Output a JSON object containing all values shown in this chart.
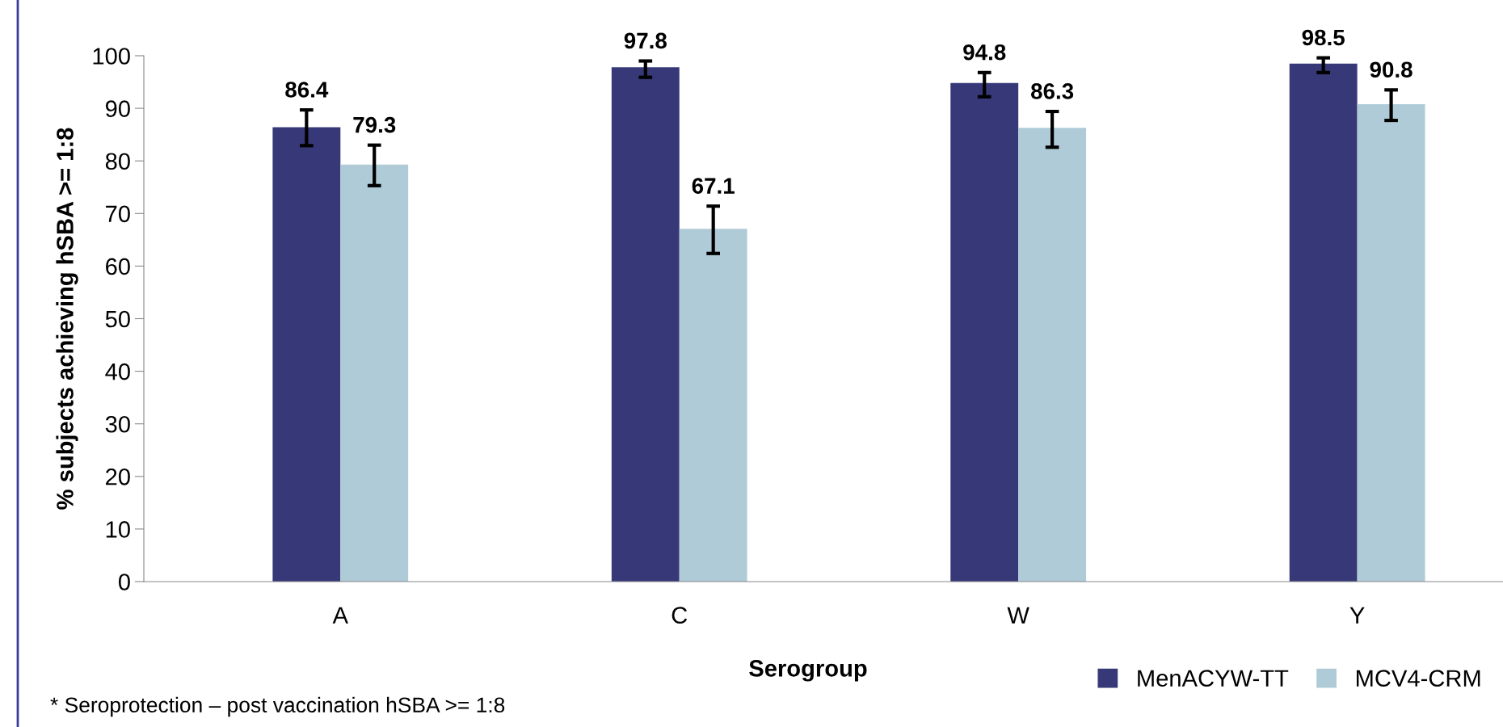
{
  "chart_data": {
    "type": "bar",
    "xlabel": "Serogroup",
    "ylabel": "% subjects achieving hSBA >= 1:8",
    "categories": [
      "A",
      "C",
      "W",
      "Y"
    ],
    "series": [
      {
        "name": "MenACYW-TT",
        "color": "#363877",
        "values": [
          86.4,
          97.8,
          94.8,
          98.5
        ],
        "errors": [
          [
            82.9,
            89.7
          ],
          [
            95.9,
            99.0
          ],
          [
            92.2,
            96.8
          ],
          [
            96.8,
            99.6
          ]
        ]
      },
      {
        "name": "MCV4-CRM",
        "color": "#afcbd7",
        "values": [
          79.3,
          67.1,
          86.3,
          90.8
        ],
        "errors": [
          [
            75.3,
            83.0
          ],
          [
            62.4,
            71.4
          ],
          [
            82.6,
            89.4
          ],
          [
            87.7,
            93.5
          ]
        ]
      }
    ],
    "ylim": [
      0,
      100
    ],
    "yticks": [
      0,
      10,
      20,
      30,
      40,
      50,
      60,
      70,
      80,
      90,
      100
    ],
    "data_labels": true,
    "grid": false,
    "legend": "bottom right",
    "annotations": [
      "* Seroprotection – post vaccination hSBA >= 1:8"
    ]
  }
}
